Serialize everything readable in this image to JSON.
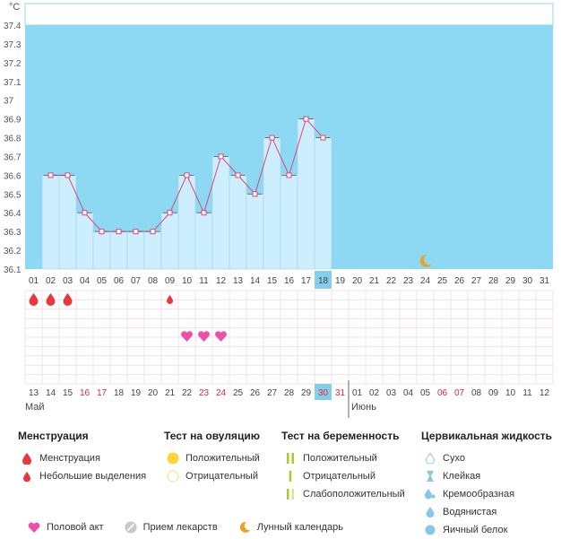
{
  "chart_data": {
    "type": "bar",
    "unit_label": "°C",
    "ylim": [
      36.1,
      37.4
    ],
    "yticks": [
      "36.1",
      "36.2",
      "36.3",
      "36.4",
      "36.5",
      "36.6",
      "36.7",
      "36.8",
      "36.9",
      "37",
      "37.1",
      "37.2",
      "37.3",
      "37.4"
    ],
    "cycle_days": [
      "01",
      "02",
      "03",
      "04",
      "05",
      "06",
      "07",
      "08",
      "09",
      "10",
      "11",
      "12",
      "13",
      "14",
      "15",
      "16",
      "17",
      "18",
      "19",
      "20",
      "21",
      "22",
      "23",
      "24",
      "25",
      "26",
      "27",
      "28",
      "29",
      "30",
      "31"
    ],
    "values": [
      null,
      36.6,
      36.6,
      36.4,
      36.3,
      36.3,
      36.3,
      36.3,
      36.4,
      36.6,
      36.4,
      36.7,
      36.6,
      36.5,
      36.8,
      36.6,
      36.9,
      36.8,
      null,
      null,
      null,
      null,
      null,
      null,
      null,
      null,
      null,
      null,
      null,
      null,
      null
    ],
    "current_day": "18",
    "dates": [
      "13",
      "14",
      "15",
      "16",
      "17",
      "18",
      "19",
      "20",
      "21",
      "22",
      "23",
      "24",
      "25",
      "26",
      "27",
      "28",
      "29",
      "30",
      "31",
      "01",
      "02",
      "03",
      "04",
      "05",
      "06",
      "07",
      "08",
      "09",
      "10",
      "11",
      "12"
    ],
    "weekend_dates_idx": [
      3,
      4,
      10,
      11,
      17,
      18,
      24,
      25
    ],
    "highlight_date_idx": 17,
    "months": [
      {
        "label": "Май",
        "start_idx": 0
      },
      {
        "label": "Июнь",
        "start_idx": 19
      }
    ],
    "menstruation_days_idx": [
      0,
      1,
      2
    ],
    "light_discharge_days_idx": [
      8
    ],
    "intercourse_days_idx": [
      9,
      10,
      11
    ],
    "moon_day_idx": 23
  },
  "legend": {
    "menstruation": {
      "title": "Менструация",
      "items": [
        "Менструация",
        "Небольшие выделения"
      ]
    },
    "ovulation": {
      "title": "Тест на овуляцию",
      "items": [
        "Положительный",
        "Отрицательный"
      ]
    },
    "pregnancy": {
      "title": "Тест на беременность",
      "items": [
        "Положительный",
        "Отрицательный",
        "Слабоположительный"
      ]
    },
    "cervical": {
      "title": "Цервикальная жидкость",
      "items": [
        "Сухо",
        "Клейкая",
        "Кремообразная",
        "Водянистая",
        "Яичный белок"
      ]
    },
    "bottom": [
      "Половой акт",
      "Прием лекарств",
      "Лунный календарь"
    ]
  },
  "colors": {
    "plot_bg": "#8dd8f2",
    "bar_fill": "#cdeefc",
    "bar_stroke": "#9fd0e8",
    "line": "#e0457b",
    "drop": "#e8383d",
    "heart": "#f04fa8",
    "moon": "#f0a020",
    "grid": "#efe2ea",
    "weekend": "#e0283c",
    "current": "#86cdea",
    "ovu_pos": "#ffd43b",
    "ovu_neg": "#f3e39a",
    "preg_pos": "#a9c92a",
    "preg_weak": "#d7e5a2",
    "cervical": "#88c7ea"
  },
  "icons": {
    "menstruation": "drop-icon",
    "light_discharge": "small-drop-icon",
    "intercourse": "heart-icon",
    "moon": "moon-icon",
    "medication": "pill-icon"
  }
}
